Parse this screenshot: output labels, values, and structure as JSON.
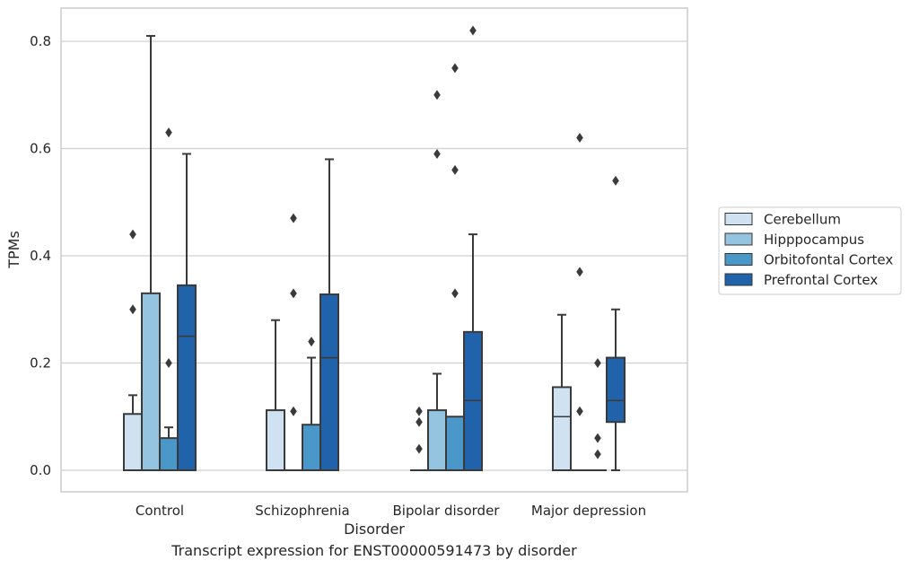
{
  "caption": "Transcript expression for ENST00000591473 by disorder",
  "chart_data": {
    "type": "box",
    "xlabel": "Disorder",
    "ylabel": "TPMs",
    "ylim": [
      -0.04,
      0.86
    ],
    "yticks": [
      0.0,
      0.2,
      0.4,
      0.6,
      0.8
    ],
    "ytick_labels": [
      "0.0",
      "0.2",
      "0.4",
      "0.6",
      "0.8"
    ],
    "grid": "horizontal",
    "legend_position": "right",
    "categories": [
      "Control",
      "Schizophrenia",
      "Bipolar disorder",
      "Major depression"
    ],
    "series": [
      {
        "name": "Cerebellum",
        "color": "#d0e1f2",
        "boxes": [
          {
            "whislo": 0.0,
            "q1": 0.0,
            "med": 0.0,
            "q3": 0.105,
            "whishi": 0.14,
            "fliers": [
              0.3,
              0.44
            ]
          },
          {
            "whislo": 0.0,
            "q1": 0.0,
            "med": 0.0,
            "q3": 0.112,
            "whishi": 0.28,
            "fliers": []
          },
          {
            "whislo": 0.0,
            "q1": 0.0,
            "med": 0.0,
            "q3": 0.0,
            "whishi": 0.0,
            "fliers": [
              0.04,
              0.09,
              0.11
            ]
          },
          {
            "whislo": 0.0,
            "q1": 0.0,
            "med": 0.1,
            "q3": 0.155,
            "whishi": 0.29,
            "fliers": []
          }
        ]
      },
      {
        "name": "Hipppocampus",
        "color": "#94c4df",
        "boxes": [
          {
            "whislo": 0.0,
            "q1": 0.0,
            "med": 0.0,
            "q3": 0.33,
            "whishi": 0.81,
            "fliers": []
          },
          {
            "whislo": 0.0,
            "q1": 0.0,
            "med": 0.0,
            "q3": 0.0,
            "whishi": 0.0,
            "fliers": [
              0.11,
              0.33,
              0.47
            ]
          },
          {
            "whislo": 0.0,
            "q1": 0.0,
            "med": 0.0,
            "q3": 0.112,
            "whishi": 0.18,
            "fliers": [
              0.59,
              0.7
            ]
          },
          {
            "whislo": 0.0,
            "q1": 0.0,
            "med": 0.0,
            "q3": 0.0,
            "whishi": 0.0,
            "fliers": [
              0.11,
              0.37,
              0.62
            ]
          }
        ]
      },
      {
        "name": "Orbitofontal Cortex",
        "color": "#4a98c9",
        "boxes": [
          {
            "whislo": 0.0,
            "q1": 0.0,
            "med": 0.0,
            "q3": 0.06,
            "whishi": 0.08,
            "fliers": [
              0.2,
              0.63
            ]
          },
          {
            "whislo": 0.0,
            "q1": 0.0,
            "med": 0.0,
            "q3": 0.085,
            "whishi": 0.21,
            "fliers": [
              0.24
            ]
          },
          {
            "whislo": 0.0,
            "q1": 0.0,
            "med": 0.0,
            "q3": 0.1,
            "whishi": 0.1,
            "fliers": [
              0.33,
              0.56,
              0.75
            ]
          },
          {
            "whislo": 0.0,
            "q1": 0.0,
            "med": 0.0,
            "q3": 0.0,
            "whishi": 0.0,
            "fliers": [
              0.03,
              0.06,
              0.2
            ]
          }
        ]
      },
      {
        "name": "Prefrontal Cortex",
        "color": "#2163aa",
        "boxes": [
          {
            "whislo": 0.0,
            "q1": 0.0,
            "med": 0.25,
            "q3": 0.345,
            "whishi": 0.59,
            "fliers": []
          },
          {
            "whislo": 0.0,
            "q1": 0.0,
            "med": 0.21,
            "q3": 0.328,
            "whishi": 0.58,
            "fliers": []
          },
          {
            "whislo": 0.0,
            "q1": 0.0,
            "med": 0.13,
            "q3": 0.258,
            "whishi": 0.44,
            "fliers": [
              0.82
            ]
          },
          {
            "whislo": 0.0,
            "q1": 0.09,
            "med": 0.13,
            "q3": 0.21,
            "whishi": 0.3,
            "fliers": [
              0.54
            ]
          }
        ]
      }
    ]
  }
}
